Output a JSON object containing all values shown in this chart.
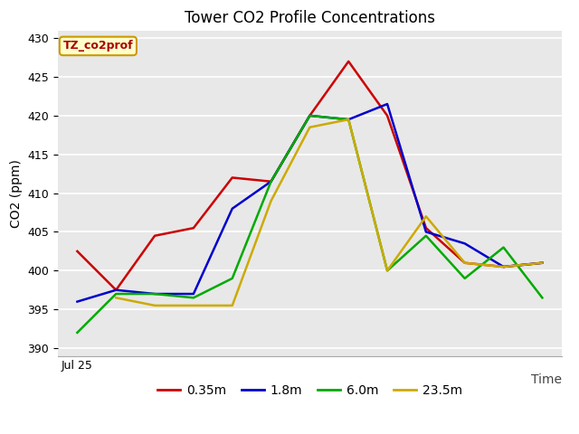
{
  "title": "Tower CO2 Profile Concentrations",
  "xlabel": "Time",
  "ylabel": "CO2 (ppm)",
  "ylim": [
    389,
    431
  ],
  "yticks": [
    390,
    395,
    400,
    405,
    410,
    415,
    420,
    425,
    430
  ],
  "x_label_start": "Jul 25",
  "legend_label": "TZ_co2prof",
  "plot_bg_color": "#e8e8e8",
  "fig_bg_color": "#ffffff",
  "series": {
    "0.35m": {
      "color": "#cc0000",
      "values": [
        402.5,
        397.5,
        404.5,
        405.5,
        412.0,
        411.5,
        420.0,
        427.0,
        420.0,
        405.5,
        401.0,
        400.5,
        401.0
      ]
    },
    "1.8m": {
      "color": "#0000cc",
      "values": [
        396.0,
        397.5,
        397.0,
        397.0,
        408.0,
        411.5,
        420.0,
        419.5,
        421.5,
        405.0,
        403.5,
        400.5,
        401.0
      ]
    },
    "6.0m": {
      "color": "#00aa00",
      "values": [
        392.0,
        397.0,
        397.0,
        396.5,
        399.0,
        411.5,
        420.0,
        419.5,
        400.0,
        404.5,
        399.0,
        403.0,
        396.5
      ]
    },
    "23.5m": {
      "color": "#ccaa00",
      "values": [
        null,
        396.5,
        395.5,
        395.5,
        395.5,
        409.0,
        418.5,
        419.5,
        400.0,
        407.0,
        401.0,
        400.5,
        401.0
      ]
    }
  },
  "series_order": [
    "0.35m",
    "1.8m",
    "6.0m",
    "23.5m"
  ],
  "title_fontsize": 12,
  "label_fontsize": 10,
  "tick_fontsize": 9,
  "legend_fontsize": 10,
  "linewidth": 1.8
}
